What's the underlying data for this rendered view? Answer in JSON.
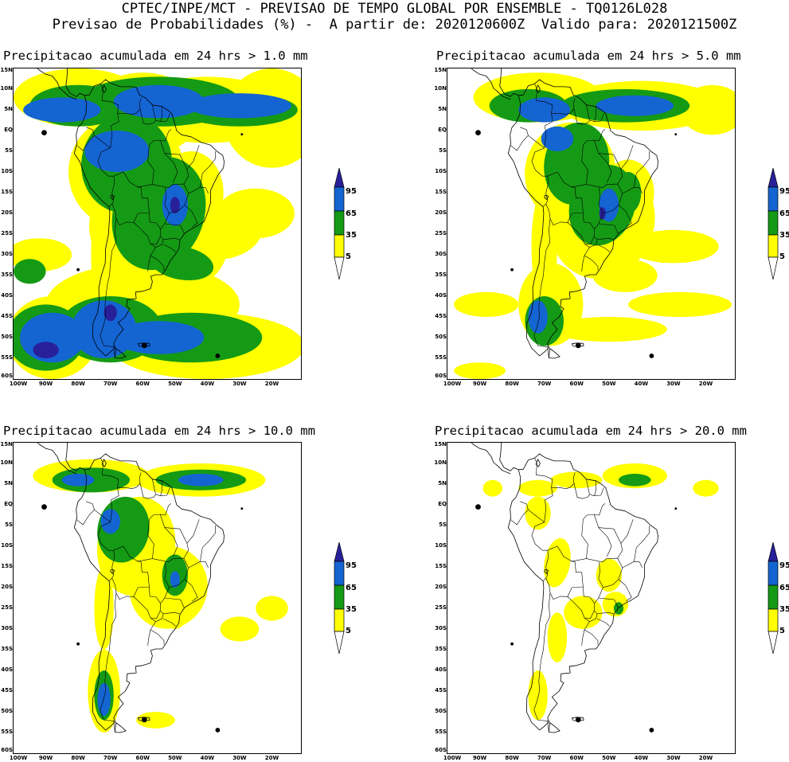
{
  "header": {
    "line1": "CPTEC/INPE/MCT - PREVISAO DE TEMPO GLOBAL POR ENSEMBLE - TQ0126L028",
    "line2": "Previsao de Probabilidades (%) -  A partir de: 2020120600Z  Valido para: 2020121500Z"
  },
  "colors": {
    "level_5": "#ffff00",
    "level_35": "#159a15",
    "level_65": "#1464d2",
    "level_95": "#28209a",
    "coast": "#000000"
  },
  "y_ticks": [
    "15N",
    "10N",
    "5N",
    "EQ",
    "5S",
    "10S",
    "15S",
    "20S",
    "25S",
    "30S",
    "35S",
    "40S",
    "45S",
    "50S",
    "55S",
    "60S"
  ],
  "x_ticks": [
    "100W",
    "90W",
    "80W",
    "70W",
    "60W",
    "50W",
    "40W",
    "30W",
    "20W"
  ],
  "colorbar_labels": [
    "95",
    "65",
    "35",
    "5"
  ],
  "panels": [
    {
      "id": "p1",
      "title": "Precipitacao acumulada em 24 hrs > 1.0 mm",
      "threshold_mm": 1.0
    },
    {
      "id": "p2",
      "title": "Precipitacao acumulada em 24 hrs > 5.0 mm",
      "threshold_mm": 5.0
    },
    {
      "id": "p3",
      "title": "Precipitacao acumulada em 24 hrs > 10.0 mm",
      "threshold_mm": 10.0
    },
    {
      "id": "p4",
      "title": "Precipitacao acumulada em 24 hrs > 20.0 mm",
      "threshold_mm": 20.0
    }
  ]
}
